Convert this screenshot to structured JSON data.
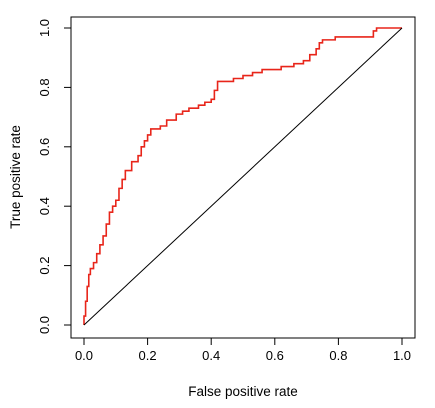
{
  "chart_data": {
    "type": "line",
    "title": "",
    "xlabel": "False positive rate",
    "ylabel": "True positive rate",
    "xlim": [
      0,
      1
    ],
    "ylim": [
      0,
      1
    ],
    "x_ticks": [
      "0.0",
      "0.2",
      "0.4",
      "0.6",
      "0.8",
      "1.0"
    ],
    "y_ticks": [
      "0.0",
      "0.2",
      "0.4",
      "0.6",
      "0.8",
      "1.0"
    ],
    "x_tick_values": [
      0,
      0.2,
      0.4,
      0.6,
      0.8,
      1.0
    ],
    "y_tick_values": [
      0,
      0.2,
      0.4,
      0.6,
      0.8,
      1.0
    ],
    "grid": false,
    "legend": "none",
    "series": [
      {
        "color": "#e8251a",
        "points": [
          [
            0.0,
            0.0
          ],
          [
            0.0,
            0.03
          ],
          [
            0.005,
            0.03
          ],
          [
            0.005,
            0.08
          ],
          [
            0.01,
            0.08
          ],
          [
            0.01,
            0.13
          ],
          [
            0.015,
            0.13
          ],
          [
            0.015,
            0.17
          ],
          [
            0.02,
            0.17
          ],
          [
            0.02,
            0.19
          ],
          [
            0.03,
            0.19
          ],
          [
            0.03,
            0.21
          ],
          [
            0.04,
            0.21
          ],
          [
            0.04,
            0.24
          ],
          [
            0.05,
            0.24
          ],
          [
            0.05,
            0.27
          ],
          [
            0.06,
            0.27
          ],
          [
            0.06,
            0.3
          ],
          [
            0.07,
            0.3
          ],
          [
            0.07,
            0.34
          ],
          [
            0.08,
            0.34
          ],
          [
            0.08,
            0.38
          ],
          [
            0.09,
            0.38
          ],
          [
            0.09,
            0.4
          ],
          [
            0.1,
            0.4
          ],
          [
            0.1,
            0.42
          ],
          [
            0.11,
            0.42
          ],
          [
            0.11,
            0.46
          ],
          [
            0.12,
            0.46
          ],
          [
            0.12,
            0.49
          ],
          [
            0.13,
            0.49
          ],
          [
            0.13,
            0.52
          ],
          [
            0.15,
            0.52
          ],
          [
            0.15,
            0.55
          ],
          [
            0.17,
            0.55
          ],
          [
            0.17,
            0.57
          ],
          [
            0.18,
            0.57
          ],
          [
            0.18,
            0.6
          ],
          [
            0.19,
            0.6
          ],
          [
            0.19,
            0.62
          ],
          [
            0.2,
            0.62
          ],
          [
            0.2,
            0.64
          ],
          [
            0.21,
            0.64
          ],
          [
            0.21,
            0.66
          ],
          [
            0.24,
            0.66
          ],
          [
            0.24,
            0.67
          ],
          [
            0.26,
            0.67
          ],
          [
            0.26,
            0.69
          ],
          [
            0.29,
            0.69
          ],
          [
            0.29,
            0.71
          ],
          [
            0.31,
            0.71
          ],
          [
            0.31,
            0.72
          ],
          [
            0.33,
            0.72
          ],
          [
            0.33,
            0.73
          ],
          [
            0.36,
            0.73
          ],
          [
            0.36,
            0.74
          ],
          [
            0.38,
            0.74
          ],
          [
            0.38,
            0.75
          ],
          [
            0.4,
            0.75
          ],
          [
            0.4,
            0.76
          ],
          [
            0.41,
            0.76
          ],
          [
            0.41,
            0.79
          ],
          [
            0.42,
            0.79
          ],
          [
            0.42,
            0.82
          ],
          [
            0.47,
            0.82
          ],
          [
            0.47,
            0.83
          ],
          [
            0.5,
            0.83
          ],
          [
            0.5,
            0.84
          ],
          [
            0.53,
            0.84
          ],
          [
            0.53,
            0.85
          ],
          [
            0.56,
            0.85
          ],
          [
            0.56,
            0.86
          ],
          [
            0.62,
            0.86
          ],
          [
            0.62,
            0.87
          ],
          [
            0.66,
            0.87
          ],
          [
            0.66,
            0.88
          ],
          [
            0.69,
            0.88
          ],
          [
            0.69,
            0.89
          ],
          [
            0.71,
            0.89
          ],
          [
            0.71,
            0.91
          ],
          [
            0.73,
            0.91
          ],
          [
            0.73,
            0.93
          ],
          [
            0.74,
            0.93
          ],
          [
            0.74,
            0.95
          ],
          [
            0.75,
            0.95
          ],
          [
            0.75,
            0.96
          ],
          [
            0.79,
            0.96
          ],
          [
            0.79,
            0.97
          ],
          [
            0.91,
            0.97
          ],
          [
            0.91,
            0.99
          ],
          [
            0.92,
            0.99
          ],
          [
            0.92,
            1.0
          ],
          [
            1.0,
            1.0
          ]
        ]
      },
      {
        "color": "#000000",
        "points": [
          [
            0,
            0
          ],
          [
            1,
            1
          ]
        ]
      }
    ]
  }
}
